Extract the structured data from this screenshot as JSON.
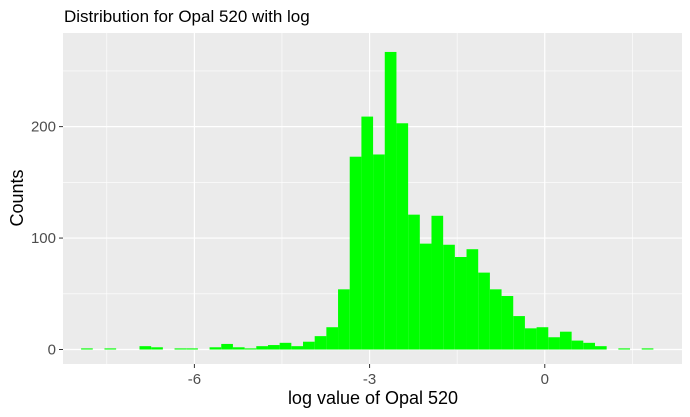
{
  "chart_data": {
    "type": "bar",
    "title": "Distribution for Opal 520 with log",
    "xlabel": "log value of Opal 520",
    "ylabel": "Counts",
    "xlim": [
      -8.25,
      2.35
    ],
    "ylim": [
      -13,
      284
    ],
    "bin_width": 0.2,
    "x_ticks": [
      -6,
      -3,
      0
    ],
    "x_tick_labels": [
      "-6",
      "-3",
      "0"
    ],
    "y_ticks": [
      0,
      100,
      200
    ],
    "y_tick_labels": [
      "0",
      "100",
      "200"
    ],
    "grid": true,
    "legend": "none",
    "bar_color": "#00ff00",
    "panel_background": "#ebebeb",
    "grid_color": "#ffffff",
    "x": [
      -7.84,
      -7.44,
      -6.84,
      -6.64,
      -6.24,
      -6.04,
      -5.64,
      -5.44,
      -5.24,
      -5.04,
      -4.84,
      -4.64,
      -4.44,
      -4.24,
      -4.04,
      -3.84,
      -3.64,
      -3.44,
      -3.24,
      -3.04,
      -2.84,
      -2.64,
      -2.44,
      -2.24,
      -2.04,
      -1.84,
      -1.64,
      -1.44,
      -1.24,
      -1.04,
      -0.84,
      -0.64,
      -0.44,
      -0.24,
      -0.04,
      0.16,
      0.36,
      0.56,
      0.76,
      0.96,
      1.36,
      1.76
    ],
    "values": [
      1,
      1,
      3,
      2,
      1,
      1,
      2,
      5,
      2,
      1,
      3,
      4,
      6,
      3,
      7,
      12,
      20,
      54,
      173,
      209,
      175,
      267,
      203,
      121,
      95,
      120,
      94,
      83,
      90,
      69,
      54,
      48,
      30,
      19,
      20,
      11,
      16,
      8,
      6,
      3,
      1,
      1
    ]
  }
}
